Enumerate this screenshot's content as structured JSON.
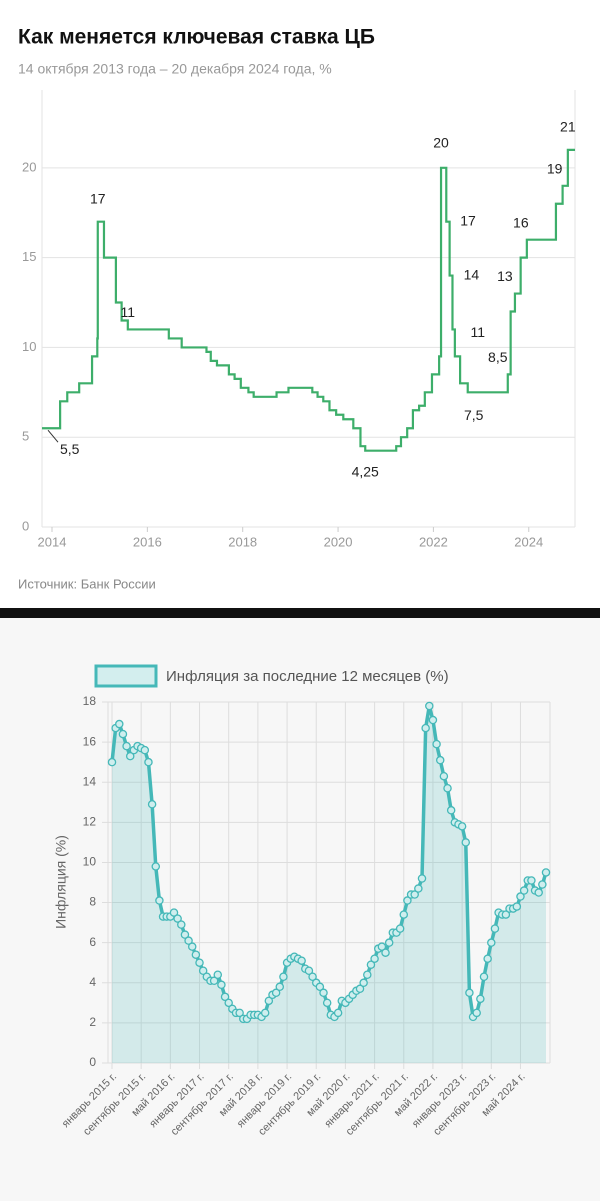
{
  "chart_data": [
    {
      "type": "step",
      "title": "Как меняется ключевая ставка ЦБ",
      "subtitle": "14 октября 2013 года – 20 декабря 2024 года, %",
      "source": "Источник: Банк России",
      "x": [
        2013.79,
        2014.17,
        2014.32,
        2014.57,
        2014.84,
        2014.95,
        2014.96,
        2015.09,
        2015.34,
        2015.46,
        2015.59,
        2016.45,
        2016.72,
        2017.24,
        2017.33,
        2017.46,
        2017.71,
        2017.83,
        2017.96,
        2018.12,
        2018.23,
        2018.71,
        2018.96,
        2019.46,
        2019.57,
        2019.69,
        2019.82,
        2019.96,
        2020.11,
        2020.32,
        2020.47,
        2020.57,
        2021.22,
        2021.32,
        2021.45,
        2021.57,
        2021.7,
        2021.82,
        2021.97,
        2022.12,
        2022.16,
        2022.27,
        2022.34,
        2022.4,
        2022.45,
        2022.56,
        2022.72,
        2023.56,
        2023.62,
        2023.71,
        2023.83,
        2023.96,
        2024.57,
        2024.71,
        2024.82,
        2024.97
      ],
      "values": [
        5.5,
        7,
        7.5,
        8,
        9.5,
        10.5,
        17,
        15,
        12.5,
        11.5,
        11,
        10.5,
        10,
        9.75,
        9.25,
        9,
        8.5,
        8.25,
        7.75,
        7.5,
        7.25,
        7.5,
        7.75,
        7.5,
        7.25,
        7,
        6.5,
        6.25,
        6,
        5.5,
        4.5,
        4.25,
        4.5,
        5,
        5.5,
        6.5,
        6.75,
        7.5,
        8.5,
        9.5,
        20,
        17,
        14,
        11,
        9.5,
        8,
        7.5,
        8.5,
        12,
        13,
        15,
        16,
        18,
        19,
        21,
        21
      ],
      "color": "#3dae6a",
      "annotations": [
        {
          "x": 2013.79,
          "value": 5.5,
          "label": "5,5"
        },
        {
          "x": 2014.96,
          "value": 17,
          "label": "17"
        },
        {
          "x": 2015.59,
          "value": 11,
          "label": "11"
        },
        {
          "x": 2020.57,
          "value": 4.25,
          "label": "4,25"
        },
        {
          "x": 2022.16,
          "value": 20,
          "label": "20"
        },
        {
          "x": 2022.27,
          "value": 17,
          "label": "17"
        },
        {
          "x": 2022.34,
          "value": 14,
          "label": "14"
        },
        {
          "x": 2022.4,
          "value": 11,
          "label": "11"
        },
        {
          "x": 2022.72,
          "value": 7.5,
          "label": "7,5"
        },
        {
          "x": 2023.56,
          "value": 8.5,
          "label": "8,5"
        },
        {
          "x": 2023.71,
          "value": 13,
          "label": "13"
        },
        {
          "x": 2023.96,
          "value": 16,
          "label": "16"
        },
        {
          "x": 2024.71,
          "value": 19,
          "label": "19"
        },
        {
          "x": 2024.82,
          "value": 21,
          "label": "21"
        }
      ],
      "xlim": [
        2013.79,
        2024.97
      ],
      "xticks": [
        2014,
        2016,
        2018,
        2020,
        2022,
        2024
      ],
      "ylim": [
        0,
        24
      ],
      "yticks": [
        0,
        5,
        10,
        15,
        20
      ],
      "grid": true
    },
    {
      "type": "area",
      "legend": "Инфляция за последние 12 месяцев (%)",
      "y_label": "Инфляция (%)",
      "color": "#45b8b8",
      "categories": [
        "январь 2015 г.",
        null,
        null,
        null,
        null,
        null,
        null,
        null,
        "сентябрь 2015 г.",
        null,
        null,
        null,
        null,
        null,
        null,
        null,
        "май 2016 г.",
        null,
        null,
        null,
        null,
        null,
        null,
        null,
        "январь 2017 г.",
        null,
        null,
        null,
        null,
        null,
        null,
        null,
        "сентябрь 2017 г.",
        null,
        null,
        null,
        null,
        null,
        null,
        null,
        "май 2018 г.",
        null,
        null,
        null,
        null,
        null,
        null,
        null,
        "январь 2019 г.",
        null,
        null,
        null,
        null,
        null,
        null,
        null,
        "сентябрь 2019 г.",
        null,
        null,
        null,
        null,
        null,
        null,
        null,
        "май 2020 г.",
        null,
        null,
        null,
        null,
        null,
        null,
        null,
        "январь 2021 г.",
        null,
        null,
        null,
        null,
        null,
        null,
        null,
        "сентябрь 2021 г.",
        null,
        null,
        null,
        null,
        null,
        null,
        null,
        "май 2022 г.",
        null,
        null,
        null,
        null,
        null,
        null,
        null,
        "январь 2023 г.",
        null,
        null,
        null,
        null,
        null,
        null,
        null,
        "сентябрь 2023 г.",
        null,
        null,
        null,
        null,
        null,
        null,
        null,
        "май 2024 г.",
        null,
        null,
        null,
        null,
        null,
        null,
        null
      ],
      "values": [
        15.0,
        16.7,
        16.9,
        16.4,
        15.8,
        15.3,
        15.6,
        15.8,
        15.7,
        15.6,
        15.0,
        12.9,
        9.8,
        8.1,
        7.3,
        7.3,
        7.3,
        7.5,
        7.2,
        6.9,
        6.4,
        6.1,
        5.8,
        5.4,
        5.0,
        4.6,
        4.3,
        4.1,
        4.1,
        4.4,
        3.9,
        3.3,
        3.0,
        2.7,
        2.5,
        2.5,
        2.2,
        2.2,
        2.4,
        2.4,
        2.4,
        2.3,
        2.5,
        3.1,
        3.4,
        3.5,
        3.8,
        4.3,
        5.0,
        5.2,
        5.3,
        5.2,
        5.1,
        4.7,
        4.6,
        4.3,
        4.0,
        3.8,
        3.5,
        3.0,
        2.4,
        2.3,
        2.5,
        3.1,
        3.0,
        3.2,
        3.4,
        3.6,
        3.7,
        4.0,
        4.4,
        4.9,
        5.2,
        5.7,
        5.8,
        5.5,
        6.0,
        6.5,
        6.5,
        6.7,
        7.4,
        8.1,
        8.4,
        8.4,
        8.7,
        9.2,
        16.7,
        17.8,
        17.1,
        15.9,
        15.1,
        14.3,
        13.7,
        12.6,
        12.0,
        11.9,
        11.8,
        11.0,
        3.5,
        2.3,
        2.5,
        3.2,
        4.3,
        5.2,
        6.0,
        6.7,
        7.5,
        7.4,
        7.4,
        7.7,
        7.7,
        7.8,
        8.3,
        8.6,
        9.1,
        9.1,
        8.6,
        8.5,
        8.9,
        9.5
      ],
      "ylim": [
        0,
        18
      ],
      "yticks": [
        0,
        2,
        4,
        6,
        8,
        10,
        12,
        14,
        16,
        18
      ],
      "grid": true
    }
  ]
}
